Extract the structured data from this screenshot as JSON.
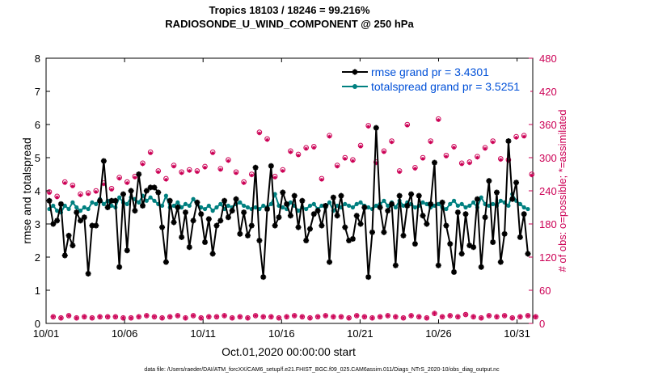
{
  "chart_data": {
    "type": "line",
    "title": "Tropics 18103 / 18246 = 99.216%",
    "subtitle": "RADIOSONDE_U_WIND_COMPONENT @ 250 hPa",
    "xlabel": "Oct.01,2020 00:00:00 start",
    "ylabel": "rmse and totalspread",
    "ylabel_right": "# of obs: o=possible; *=assimilated",
    "x_ticks": [
      "10/01",
      "10/06",
      "10/11",
      "10/16",
      "10/21",
      "10/26",
      "10/31"
    ],
    "xlim": [
      "2020-10-01",
      "2020-11-01"
    ],
    "ylim": [
      0,
      8
    ],
    "y_ticks": [
      "0",
      "1",
      "2",
      "3",
      "4",
      "5",
      "6",
      "7",
      "8"
    ],
    "ylim_right": [
      0,
      480
    ],
    "y_ticks_right": [
      "0",
      "60",
      "120",
      "180",
      "240",
      "300",
      "360",
      "420",
      "480"
    ],
    "legend_position": "top-right",
    "grid": false,
    "colors": {
      "rmse": "#000000",
      "spread": "#008080",
      "obs": "#cc0055",
      "legend_text": "#0050d8"
    },
    "series": [
      {
        "name": "rmse grand pr = 3.4301",
        "marker": "star",
        "values": [
          3.7,
          3.0,
          3.1,
          3.6,
          2.05,
          2.65,
          2.35,
          3.35,
          3.1,
          3.2,
          1.5,
          2.95,
          2.95,
          3.7,
          4.9,
          3.5,
          3.7,
          3.7,
          1.7,
          3.9,
          2.2,
          4.0,
          3.4,
          4.5,
          3.55,
          4.0,
          4.1,
          4.1,
          3.95,
          2.9,
          1.85,
          3.7,
          3.05,
          3.5,
          2.6,
          3.35,
          2.3,
          3.1,
          3.65,
          3.3,
          2.45,
          3.15,
          2.1,
          2.95,
          3.1,
          3.7,
          3.2,
          3.4,
          3.75,
          2.7,
          3.35,
          2.65,
          2.95,
          4.7,
          2.5,
          1.4,
          3.45,
          4.75,
          2.95,
          3.2,
          3.95,
          3.6,
          3.25,
          3.85,
          2.9,
          3.7,
          2.5,
          2.85,
          3.3,
          3.4,
          2.95,
          3.55,
          1.85,
          3.8,
          3.25,
          3.85,
          2.9,
          2.5,
          2.55,
          3.25,
          3.0,
          3.5,
          1.4,
          2.75,
          5.9,
          3.5,
          2.75,
          3.4,
          3.6,
          1.75,
          3.85,
          2.65,
          3.55,
          3.9,
          2.4,
          3.85,
          3.25,
          3.0,
          3.6,
          4.85,
          1.75,
          3.65,
          2.95,
          2.4,
          1.55,
          3.35,
          2.1,
          3.3,
          2.35,
          2.3,
          3.75,
          1.7,
          3.2,
          4.3,
          2.45,
          3.95,
          1.85,
          2.7,
          5.5,
          3.75,
          4.25,
          2.6,
          3.3,
          2.1
        ],
        "note_style": "line with star markers"
      },
      {
        "name": "totalspread grand pr = 3.5251",
        "marker": "circle",
        "values": [
          3.45,
          3.55,
          3.4,
          3.35,
          3.55,
          3.45,
          3.65,
          3.5,
          3.4,
          3.5,
          3.45,
          3.65,
          3.6,
          3.75,
          3.6,
          3.7,
          3.55,
          3.5,
          3.8,
          3.65,
          3.6,
          3.8,
          3.75,
          3.65,
          3.85,
          3.7,
          3.8,
          3.7,
          3.6,
          3.55,
          3.85,
          3.5,
          3.55,
          3.65,
          3.5,
          3.6,
          3.55,
          3.75,
          3.6,
          3.5,
          3.45,
          3.55,
          3.4,
          3.5,
          3.6,
          3.45,
          3.55,
          3.5,
          3.6,
          3.65,
          3.55,
          3.5,
          3.45,
          3.5,
          3.45,
          3.55,
          3.5,
          3.6,
          3.9,
          3.55,
          3.5,
          3.45,
          3.65,
          3.55,
          3.4,
          3.5,
          3.45,
          3.55,
          3.6,
          3.45,
          3.55,
          3.5,
          3.65,
          3.4,
          3.55,
          3.5,
          3.6,
          3.55,
          3.5,
          3.6,
          3.65,
          3.55,
          3.5,
          3.45,
          3.55,
          3.6,
          3.7,
          3.55,
          3.65,
          3.5,
          3.7,
          3.55,
          3.65,
          3.6,
          3.5,
          3.55,
          3.65,
          3.6,
          3.5,
          3.55,
          3.6,
          3.5,
          3.45,
          3.6,
          3.7,
          3.55,
          3.6,
          3.5,
          3.55,
          3.65,
          3.5,
          3.8,
          3.6,
          3.55,
          3.6,
          3.55,
          3.7,
          3.65,
          3.55,
          3.9,
          3.7,
          3.6,
          3.5,
          3.45
        ]
      },
      {
        "name": "obs possible",
        "axis": "right",
        "marker": "o",
        "values": [
          238,
          12,
          230,
          10,
          256,
          14,
          250,
          10,
          234,
          12,
          236,
          10,
          240,
          12,
          254,
          12,
          244,
          12,
          264,
          10,
          256,
          10,
          266,
          12,
          290,
          14,
          310,
          12,
          276,
          10,
          262,
          12,
          286,
          14,
          274,
          10,
          278,
          14,
          276,
          10,
          284,
          12,
          310,
          12,
          280,
          14,
          296,
          10,
          274,
          12,
          256,
          10,
          270,
          14,
          346,
          12,
          334,
          12,
          266,
          10,
          278,
          12,
          312,
          14,
          306,
          12,
          318,
          10,
          320,
          12,
          262,
          14,
          340,
          12,
          286,
          12,
          300,
          10,
          296,
          14,
          322,
          12,
          358,
          10,
          292,
          12,
          312,
          14,
          330,
          12,
          276,
          10,
          360,
          14,
          282,
          12,
          300,
          10,
          330,
          18,
          370,
          12,
          304,
          14,
          320,
          12,
          290,
          16,
          292,
          12,
          302,
          10,
          318,
          14,
          330,
          12,
          298,
          14,
          296,
          10,
          338,
          12,
          340,
          14,
          270,
          12
        ]
      },
      {
        "name": "obs assimilated",
        "axis": "right",
        "marker": "*",
        "values": [
          236,
          12,
          228,
          10,
          254,
          14,
          248,
          10,
          232,
          12,
          234,
          10,
          238,
          12,
          252,
          12,
          242,
          12,
          262,
          10,
          254,
          10,
          264,
          12,
          288,
          14,
          308,
          12,
          274,
          10,
          260,
          12,
          284,
          14,
          272,
          10,
          276,
          14,
          274,
          10,
          282,
          12,
          308,
          12,
          278,
          14,
          294,
          10,
          272,
          12,
          254,
          10,
          268,
          14,
          344,
          12,
          332,
          12,
          264,
          10,
          276,
          12,
          310,
          14,
          304,
          12,
          316,
          10,
          318,
          12,
          260,
          14,
          338,
          12,
          284,
          12,
          298,
          10,
          294,
          14,
          320,
          12,
          356,
          10,
          290,
          12,
          310,
          14,
          328,
          12,
          274,
          10,
          358,
          14,
          280,
          12,
          298,
          10,
          328,
          18,
          368,
          12,
          302,
          14,
          318,
          12,
          288,
          16,
          290,
          12,
          300,
          10,
          316,
          14,
          328,
          12,
          296,
          14,
          294,
          10,
          336,
          12,
          338,
          14,
          268,
          12
        ]
      }
    ],
    "footer": "data file: /Users/raeder/DAI/ATM_forcXX/CAM6_setup/f.e21.FHIST_BGC.f09_025.CAM6assim.011/Diags_NTrS_2020-10/obs_diag_output.nc"
  }
}
